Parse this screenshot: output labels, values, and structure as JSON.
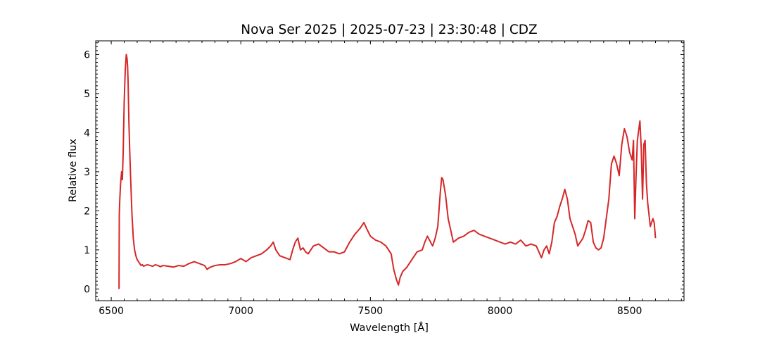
{
  "chart_data": {
    "type": "line",
    "title": "Nova Ser 2025 | 2025-07-23 | 23:30:48 | CDZ",
    "xlabel": "Wavelength [Å]",
    "ylabel": "Relative flux",
    "xlim": [
      6440,
      8710
    ],
    "ylim": [
      -0.3,
      6.35
    ],
    "xticks": [
      6500,
      7000,
      7500,
      8000,
      8500
    ],
    "xtick_labels": [
      "6500",
      "7000",
      "7500",
      "8000",
      "8500"
    ],
    "yticks": [
      0,
      1,
      2,
      3,
      4,
      5,
      6
    ],
    "ytick_labels": [
      "0",
      "1",
      "2",
      "3",
      "4",
      "5",
      "6"
    ],
    "grid": false,
    "legend": "none",
    "series": [
      {
        "color": "#d62728",
        "x": [
          6530,
          6531,
          6533,
          6536,
          6540,
          6543,
          6546,
          6550,
          6554,
          6558,
          6561,
          6563,
          6565,
          6568,
          6571,
          6575,
          6580,
          6585,
          6590,
          6595,
          6600,
          6605,
          6610,
          6615,
          6620,
          6625,
          6630,
          6640,
          6650,
          6660,
          6670,
          6680,
          6690,
          6700,
          6720,
          6740,
          6760,
          6780,
          6800,
          6820,
          6840,
          6860,
          6870,
          6880,
          6900,
          6920,
          6940,
          6960,
          6980,
          7000,
          7020,
          7040,
          7060,
          7080,
          7100,
          7115,
          7125,
          7135,
          7150,
          7170,
          7190,
          7200,
          7210,
          7220,
          7230,
          7240,
          7250,
          7260,
          7270,
          7280,
          7300,
          7320,
          7340,
          7360,
          7380,
          7400,
          7420,
          7440,
          7460,
          7475,
          7485,
          7500,
          7520,
          7540,
          7560,
          7580,
          7590,
          7600,
          7608,
          7615,
          7625,
          7640,
          7660,
          7680,
          7700,
          7710,
          7720,
          7740,
          7750,
          7760,
          7770,
          7775,
          7780,
          7790,
          7800,
          7820,
          7840,
          7860,
          7880,
          7900,
          7920,
          7940,
          7960,
          7980,
          8000,
          8020,
          8040,
          8060,
          8080,
          8100,
          8120,
          8140,
          8150,
          8160,
          8170,
          8180,
          8190,
          8200,
          8210,
          8220,
          8230,
          8240,
          8250,
          8260,
          8270,
          8280,
          8290,
          8300,
          8310,
          8320,
          8330,
          8340,
          8350,
          8360,
          8370,
          8380,
          8390,
          8400,
          8410,
          8420,
          8430,
          8440,
          8450,
          8460,
          8470,
          8480,
          8490,
          8500,
          8510,
          8515,
          8520,
          8525,
          8530,
          8540,
          8545,
          8550,
          8555,
          8560,
          8565,
          8570,
          8580,
          8590,
          8595,
          8600
        ],
        "y": [
          0.0,
          1.9,
          2.3,
          2.7,
          3.0,
          2.8,
          3.5,
          4.8,
          5.6,
          6.0,
          5.9,
          5.7,
          5.3,
          4.3,
          3.6,
          2.8,
          1.9,
          1.3,
          1.0,
          0.85,
          0.75,
          0.7,
          0.65,
          0.6,
          0.62,
          0.58,
          0.6,
          0.62,
          0.6,
          0.58,
          0.62,
          0.6,
          0.57,
          0.6,
          0.58,
          0.56,
          0.6,
          0.58,
          0.65,
          0.7,
          0.65,
          0.6,
          0.5,
          0.55,
          0.6,
          0.62,
          0.62,
          0.65,
          0.7,
          0.78,
          0.7,
          0.8,
          0.85,
          0.9,
          1.0,
          1.1,
          1.2,
          1.0,
          0.85,
          0.8,
          0.75,
          1.0,
          1.2,
          1.3,
          1.0,
          1.05,
          0.95,
          0.9,
          1.0,
          1.1,
          1.15,
          1.05,
          0.95,
          0.95,
          0.9,
          0.95,
          1.2,
          1.4,
          1.55,
          1.7,
          1.55,
          1.35,
          1.25,
          1.2,
          1.1,
          0.9,
          0.5,
          0.25,
          0.1,
          0.3,
          0.45,
          0.55,
          0.75,
          0.95,
          1.0,
          1.2,
          1.35,
          1.1,
          1.3,
          1.6,
          2.5,
          2.85,
          2.8,
          2.4,
          1.8,
          1.2,
          1.3,
          1.35,
          1.45,
          1.5,
          1.4,
          1.35,
          1.3,
          1.25,
          1.2,
          1.15,
          1.2,
          1.15,
          1.25,
          1.1,
          1.15,
          1.1,
          0.95,
          0.8,
          1.0,
          1.1,
          0.9,
          1.2,
          1.7,
          1.85,
          2.1,
          2.3,
          2.55,
          2.3,
          1.8,
          1.6,
          1.4,
          1.1,
          1.2,
          1.3,
          1.5,
          1.75,
          1.7,
          1.2,
          1.05,
          1.0,
          1.05,
          1.3,
          1.8,
          2.3,
          3.2,
          3.4,
          3.2,
          2.9,
          3.7,
          4.1,
          3.9,
          3.5,
          3.3,
          3.8,
          1.8,
          2.9,
          3.8,
          4.3,
          3.6,
          2.3,
          3.7,
          3.8,
          2.7,
          2.2,
          1.6,
          1.8,
          1.7,
          1.3
        ]
      }
    ]
  }
}
